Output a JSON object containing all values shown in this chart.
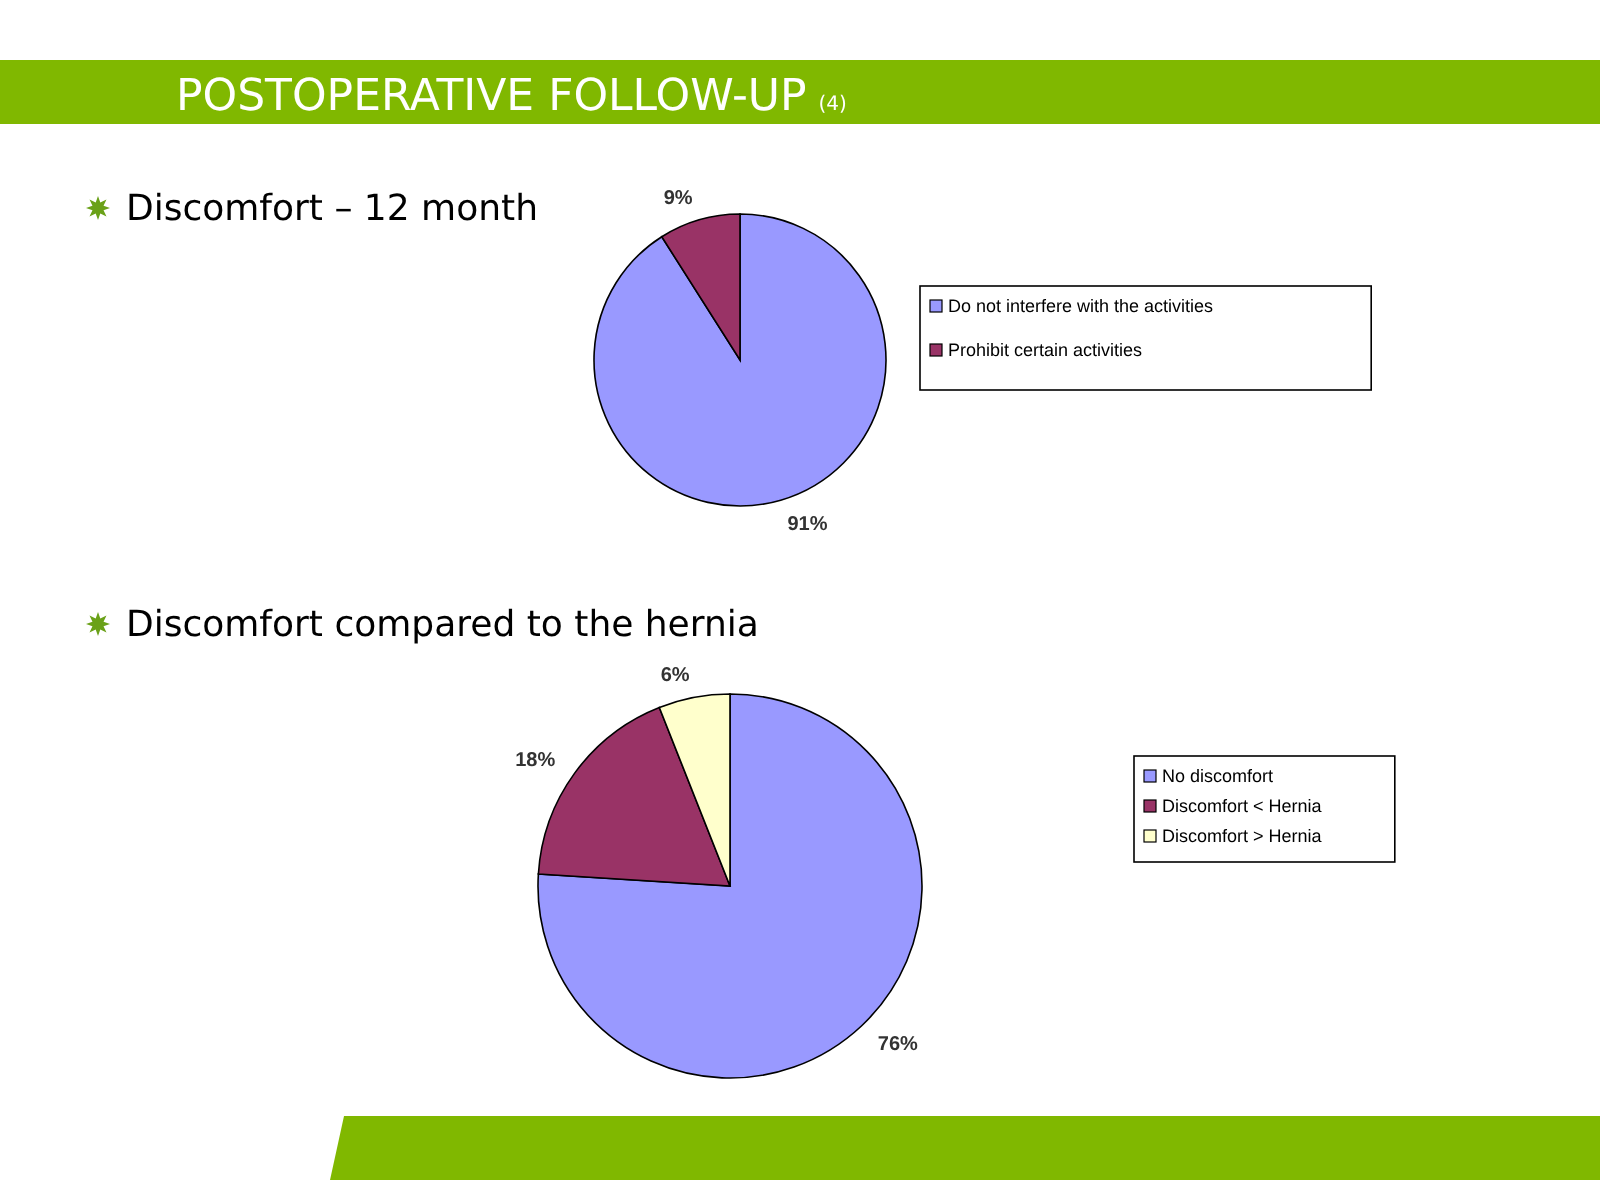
{
  "chart_data": [
    {
      "type": "other",
      "title": "POSTOPERATIVE FOLLOW-UP",
      "subtitle": "(4)"
    },
    {
      "type": "pie",
      "title": "Discomfort – 12 month",
      "categories": [
        "Do not interfere with the activities",
        "Prohibit certain activities"
      ],
      "values": [
        91,
        9
      ],
      "colors": [
        "#9999ff",
        "#993366"
      ],
      "value_labels": [
        "91%",
        "9%"
      ],
      "legend": "right"
    },
    {
      "type": "pie",
      "title": "Discomfort compared to the hernia",
      "categories": [
        "No discomfort",
        "Discomfort < Hernia",
        "Discomfort > Hernia"
      ],
      "values": [
        76,
        18,
        6
      ],
      "colors": [
        "#9999ff",
        "#993366",
        "#ffffcc"
      ],
      "value_labels": [
        "76%",
        "18%",
        "6%"
      ],
      "legend": "right"
    }
  ]
}
